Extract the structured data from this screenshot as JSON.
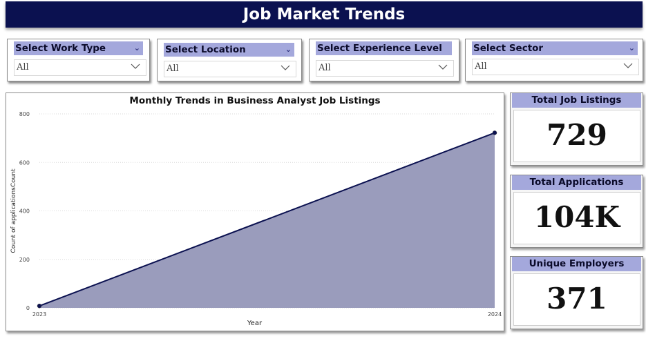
{
  "header": {
    "title": "Job Market Trends"
  },
  "slicers": [
    {
      "label": "Select Work Type",
      "value": "All"
    },
    {
      "label": "Select Location",
      "value": "All"
    },
    {
      "label": "Select Experience Level",
      "value": "All"
    },
    {
      "label": "Select Sector",
      "value": "All"
    }
  ],
  "chart": {
    "title": "Monthly Trends in Business Analyst Job Listings"
  },
  "chart_data": {
    "type": "area",
    "title": "Monthly Trends in Business Analyst Job Listings",
    "xlabel": "Year",
    "ylabel": "Count of applicationsCount",
    "x": [
      "2023",
      "2024"
    ],
    "values": [
      8,
      722
    ],
    "ylim": [
      0,
      800
    ],
    "yticks": [
      "0",
      "200",
      "400",
      "600",
      "800"
    ],
    "grid": true,
    "colors": {
      "line": "#0b1150",
      "fill": "#9a9cbc"
    }
  },
  "kpis": [
    {
      "label": "Total Job Listings",
      "value": "729"
    },
    {
      "label": "Total Applications",
      "value": "104K"
    },
    {
      "label": "Unique Employers",
      "value": "371"
    }
  ],
  "colors": {
    "header_bg": "#0b1150",
    "slicer_head": "#a4a8dc"
  }
}
